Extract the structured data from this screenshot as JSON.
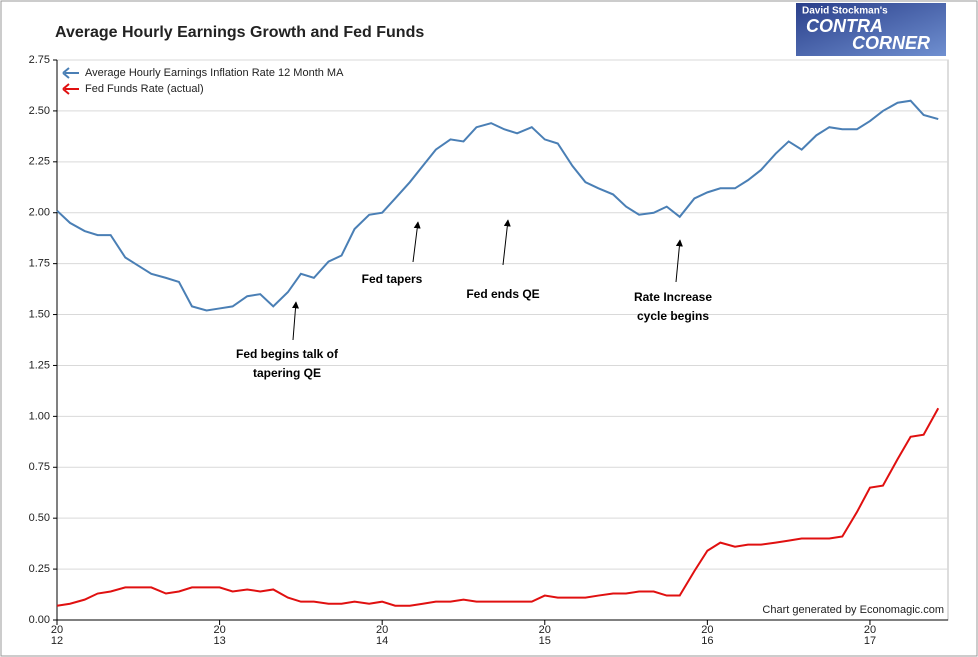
{
  "chart_data": {
    "type": "line",
    "title": "Average Hourly Earnings Growth and Fed Funds",
    "logo": [
      "David Stockman's",
      "CONTRA",
      "CORNER"
    ],
    "footer": "Chart generated by Economagic.com",
    "x": [
      2012.0,
      2012.08,
      2012.17,
      2012.25,
      2012.33,
      2012.42,
      2012.5,
      2012.58,
      2012.67,
      2012.75,
      2012.83,
      2012.92,
      2013.0,
      2013.08,
      2013.17,
      2013.25,
      2013.33,
      2013.42,
      2013.5,
      2013.58,
      2013.67,
      2013.75,
      2013.83,
      2013.92,
      2014.0,
      2014.08,
      2014.17,
      2014.25,
      2014.33,
      2014.42,
      2014.5,
      2014.58,
      2014.67,
      2014.75,
      2014.83,
      2014.92,
      2015.0,
      2015.08,
      2015.17,
      2015.25,
      2015.33,
      2015.42,
      2015.5,
      2015.58,
      2015.67,
      2015.75,
      2015.83,
      2015.92,
      2016.0,
      2016.08,
      2016.17,
      2016.25,
      2016.33,
      2016.42,
      2016.5,
      2016.58,
      2016.67,
      2016.75,
      2016.83,
      2016.92,
      2017.0,
      2017.08,
      2017.17,
      2017.25,
      2017.33,
      2017.42
    ],
    "series": [
      {
        "name": "Average Hourly Earnings Inflation Rate 12 Month MA",
        "color": "#4a7fb5",
        "values": [
          2.01,
          1.95,
          1.91,
          1.89,
          1.89,
          1.78,
          1.74,
          1.7,
          1.68,
          1.66,
          1.54,
          1.52,
          1.53,
          1.54,
          1.59,
          1.6,
          1.54,
          1.61,
          1.7,
          1.68,
          1.76,
          1.79,
          1.92,
          1.99,
          2.0,
          2.07,
          2.15,
          2.23,
          2.31,
          2.36,
          2.35,
          2.42,
          2.44,
          2.41,
          2.39,
          2.42,
          2.36,
          2.34,
          2.23,
          2.15,
          2.12,
          2.09,
          2.03,
          1.99,
          2.0,
          2.03,
          1.98,
          2.07,
          2.1,
          2.12,
          2.12,
          2.16,
          2.21,
          2.29,
          2.35,
          2.31,
          2.38,
          2.42,
          2.41,
          2.41,
          2.45,
          2.5,
          2.54,
          2.55,
          2.48,
          2.46
        ]
      },
      {
        "name": "Fed Funds Rate (actual)",
        "color": "#e01010",
        "values": [
          0.07,
          0.08,
          0.1,
          0.13,
          0.14,
          0.16,
          0.16,
          0.16,
          0.13,
          0.14,
          0.16,
          0.16,
          0.16,
          0.14,
          0.15,
          0.14,
          0.15,
          0.11,
          0.09,
          0.09,
          0.08,
          0.08,
          0.09,
          0.08,
          0.09,
          0.07,
          0.07,
          0.08,
          0.09,
          0.09,
          0.1,
          0.09,
          0.09,
          0.09,
          0.09,
          0.09,
          0.12,
          0.11,
          0.11,
          0.11,
          0.12,
          0.13,
          0.13,
          0.14,
          0.14,
          0.12,
          0.12,
          0.24,
          0.34,
          0.38,
          0.36,
          0.37,
          0.37,
          0.38,
          0.39,
          0.4,
          0.4,
          0.4,
          0.41,
          0.53,
          0.65,
          0.66,
          0.79,
          0.9,
          0.91,
          1.04
        ]
      }
    ],
    "xlim": [
      2012,
      2017.48
    ],
    "xticks": [
      {
        "value": 2012,
        "label": [
          "20",
          "12"
        ]
      },
      {
        "value": 2013,
        "label": [
          "20",
          "13"
        ]
      },
      {
        "value": 2014,
        "label": [
          "20",
          "14"
        ]
      },
      {
        "value": 2015,
        "label": [
          "20",
          "15"
        ]
      },
      {
        "value": 2016,
        "label": [
          "20",
          "16"
        ]
      },
      {
        "value": 2017,
        "label": [
          "20",
          "17"
        ]
      }
    ],
    "ylim": [
      0,
      2.75
    ],
    "yticks": [
      {
        "value": 0,
        "label": "0.00"
      },
      {
        "value": 0.25,
        "label": "0.25"
      },
      {
        "value": 0.5,
        "label": "0.50"
      },
      {
        "value": 0.75,
        "label": "0.75"
      },
      {
        "value": 1,
        "label": "1.00"
      },
      {
        "value": 1.25,
        "label": "1.25"
      },
      {
        "value": 1.5,
        "label": "1.50"
      },
      {
        "value": 1.75,
        "label": "1.75"
      },
      {
        "value": 2,
        "label": "2.00"
      },
      {
        "value": 2.25,
        "label": "2.25"
      },
      {
        "value": 2.5,
        "label": "2.50"
      },
      {
        "value": 2.75,
        "label": "2.75"
      }
    ],
    "grid": true,
    "legend": "top-left",
    "annotations": [
      {
        "text": [
          "Fed begins talk of",
          "tapering QE"
        ]
      },
      {
        "text": [
          "Fed tapers"
        ]
      },
      {
        "text": [
          "Fed ends QE"
        ]
      },
      {
        "text": [
          "Rate Increase",
          "cycle begins"
        ]
      }
    ]
  }
}
